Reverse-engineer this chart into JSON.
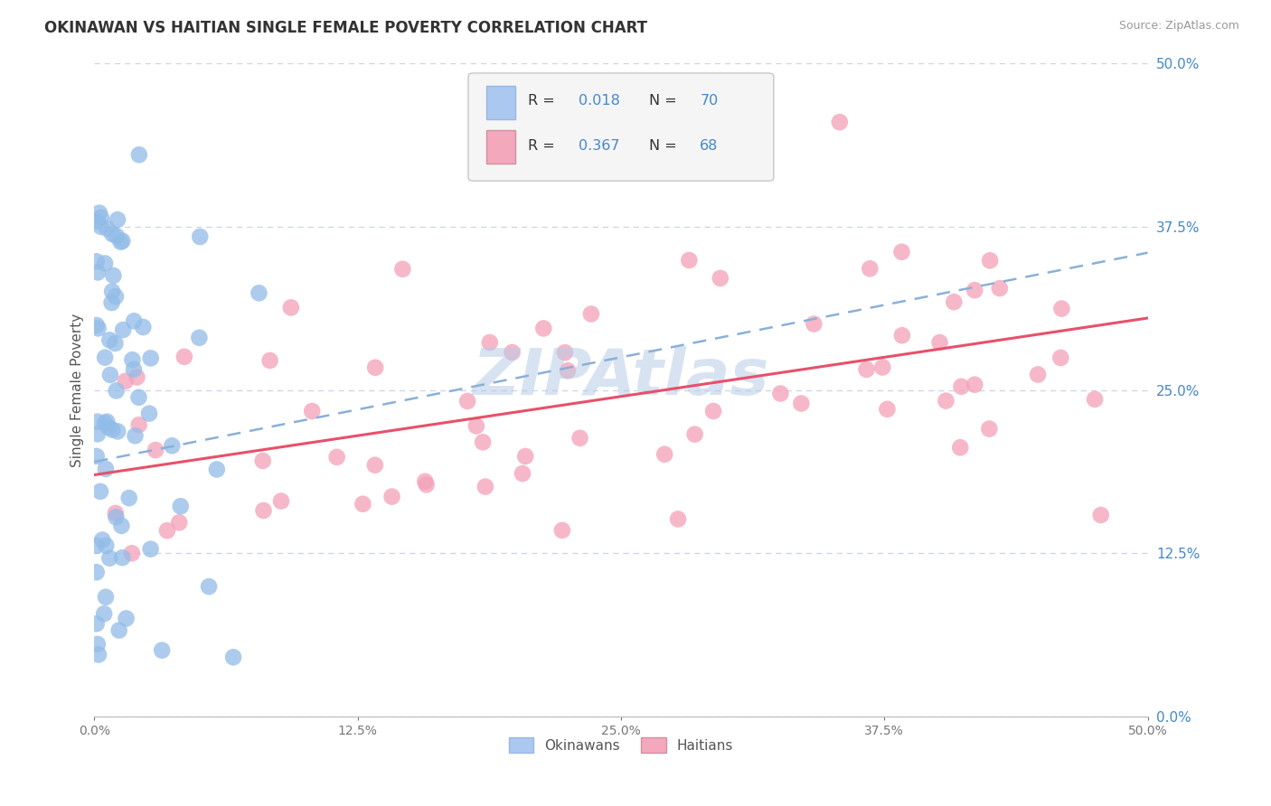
{
  "title": "OKINAWAN VS HAITIAN SINGLE FEMALE POVERTY CORRELATION CHART",
  "source_text": "Source: ZipAtlas.com",
  "ylabel": "Single Female Poverty",
  "watermark": "ZIPAtlas",
  "xlim": [
    0.0,
    0.5
  ],
  "ylim": [
    0.0,
    0.5
  ],
  "xtick_vals": [
    0.0,
    0.125,
    0.25,
    0.375,
    0.5
  ],
  "xtick_labels": [
    "0.0%",
    "12.5%",
    "25.0%",
    "37.5%",
    "50.0%"
  ],
  "ytick_vals": [
    0.0,
    0.125,
    0.25,
    0.375,
    0.5
  ],
  "ytick_labels": [
    "0.0%",
    "12.5%",
    "25.0%",
    "37.5%",
    "50.0%"
  ],
  "R_okinawan": 0.018,
  "N_okinawan": 70,
  "R_haitian": 0.367,
  "N_haitian": 68,
  "okinawan_scatter_color": "#92bce8",
  "haitian_scatter_color": "#f4a0b8",
  "trend_okinawan_color": "#8ab0d8",
  "trend_haitian_color": "#e8506a",
  "background_color": "#ffffff",
  "grid_color": "#c8d4e8",
  "title_color": "#333333",
  "source_color": "#999999",
  "watermark_color": "#b8cce8",
  "legend_text_color": "#4488cc",
  "legend_label_color": "#333333",
  "okinawan_legend_color": "#aac8f0",
  "haitian_legend_color": "#f4a8bc",
  "bottom_legend_label_color": "#555555"
}
